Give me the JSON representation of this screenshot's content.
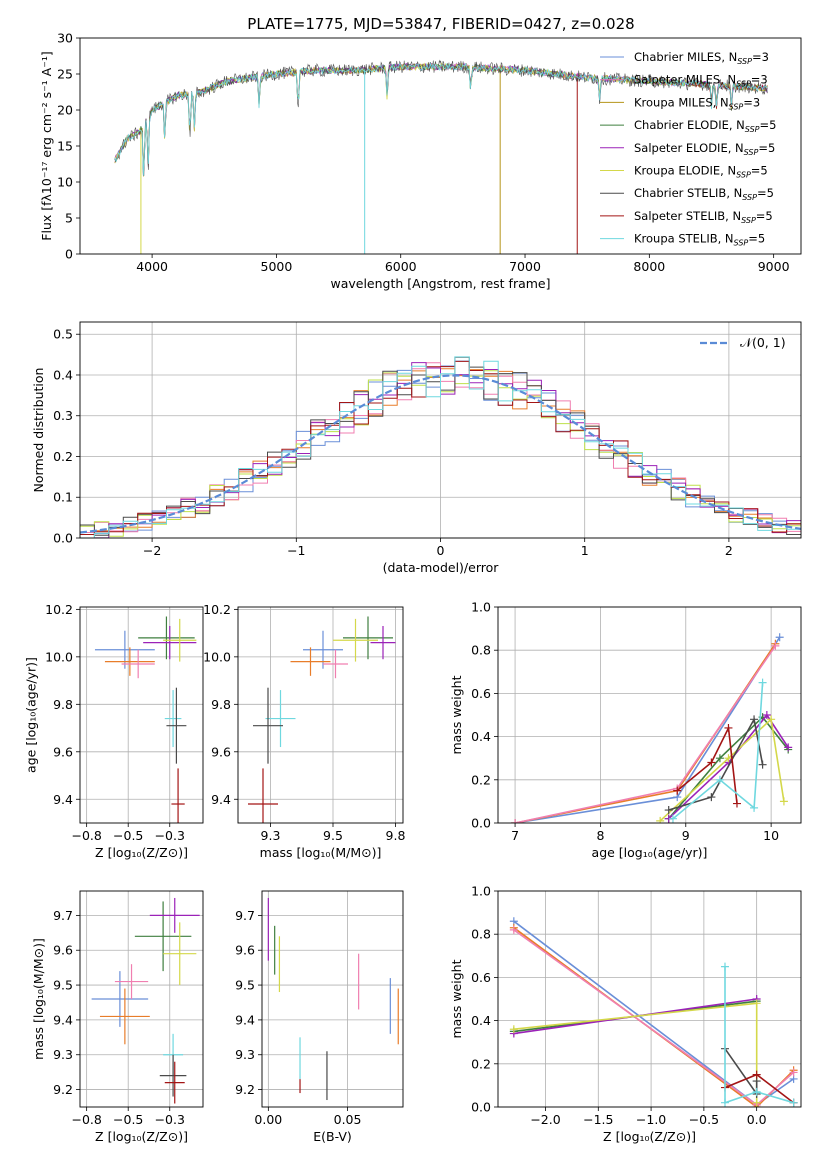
{
  "title": "PLATE=1775, MJD=53847, FIBERID=0427, z=0.028",
  "colors": {
    "Chabrier MILES": "#6a8fd8",
    "Salpeter MILES": "#e070b6",
    "Kroupa MILES": "#b5941a",
    "Chabrier ELODIE": "#3f7f3f",
    "Salpeter ELODIE": "#9b22b8",
    "Kroupa ELODIE": "#d4d84a",
    "Chabrier STELIB": "#4a4a4a",
    "Salpeter STELIB": "#a31515",
    "Kroupa STELIB": "#6fd8df",
    "orange": "#e87d2a",
    "pink": "#f07fb0",
    "lime": "#bfe04a",
    "gauss": "#5a8bd6",
    "grid": "#b0b0b0"
  },
  "chart_data": [
    {
      "id": "spectrum",
      "type": "line",
      "title": "PLATE=1775, MJD=53847, FIBERID=0427, z=0.028",
      "xlabel": "wavelength [Angstrom, rest frame]",
      "ylabel": "Flux [fλ10⁻¹⁷ erg cm⁻² s⁻¹ A⁻¹]",
      "xlim": [
        3420,
        9220
      ],
      "ylim": [
        0,
        30
      ],
      "xticks": [
        4000,
        5000,
        6000,
        7000,
        8000,
        9000
      ],
      "yticks": [
        0,
        5,
        10,
        15,
        20,
        25,
        30
      ],
      "grid": false,
      "legend": "upper right",
      "legend_entries": [
        {
          "name": "Chabrier MILES, N",
          "sub": "SSP",
          "suffix": "=3"
        },
        {
          "name": "Salpeter MILES, N",
          "sub": "SSP",
          "suffix": "=3"
        },
        {
          "name": "Kroupa MILES, N",
          "sub": "SSP",
          "suffix": "=3"
        },
        {
          "name": "Chabrier ELODIE, N",
          "sub": "SSP",
          "suffix": "=5"
        },
        {
          "name": "Salpeter ELODIE, N",
          "sub": "SSP",
          "suffix": "=5"
        },
        {
          "name": "Kroupa ELODIE, N",
          "sub": "SSP",
          "suffix": "=5"
        },
        {
          "name": "Chabrier STELIB, N",
          "sub": "SSP",
          "suffix": "=5"
        },
        {
          "name": "Salpeter STELIB, N",
          "sub": "SSP",
          "suffix": "=5"
        },
        {
          "name": "Kroupa STELIB, N",
          "sub": "SSP",
          "suffix": "=5"
        }
      ],
      "continuum": [
        [
          3700,
          13
        ],
        [
          3800,
          16
        ],
        [
          3900,
          17
        ],
        [
          4000,
          20
        ],
        [
          4100,
          21
        ],
        [
          4200,
          22
        ],
        [
          4400,
          22.5
        ],
        [
          4600,
          24
        ],
        [
          4800,
          24.5
        ],
        [
          5000,
          25
        ],
        [
          5300,
          25.5
        ],
        [
          5600,
          25.5
        ],
        [
          6000,
          26
        ],
        [
          6500,
          26
        ],
        [
          7000,
          25.5
        ],
        [
          7500,
          24.5
        ],
        [
          8000,
          24
        ],
        [
          8500,
          23.5
        ],
        [
          8950,
          23
        ]
      ],
      "dips": [
        [
          3933,
          8
        ],
        [
          3968,
          7
        ],
        [
          4102,
          5
        ],
        [
          4304,
          6
        ],
        [
          4340,
          5
        ],
        [
          4861,
          4
        ],
        [
          5175,
          5
        ],
        [
          5890,
          4
        ],
        [
          6563,
          3
        ],
        [
          7600,
          3
        ],
        [
          8500,
          3
        ],
        [
          8540,
          3
        ],
        [
          8660,
          3
        ]
      ],
      "drops": [
        {
          "series": "Kroupa ELODIE",
          "x": 3910
        },
        {
          "series": "Kroupa MILES",
          "x": 6800
        },
        {
          "series": "Salpeter STELIB",
          "x": 7420
        },
        {
          "series": "Kroupa STELIB",
          "x": 5710
        }
      ]
    },
    {
      "id": "residuals",
      "type": "bar",
      "xlabel": "(data-model)/error",
      "ylabel": "Normed distribution",
      "xlim": [
        -2.5,
        2.5
      ],
      "ylim": [
        0,
        0.53
      ],
      "xticks": [
        -2,
        -1,
        0,
        1,
        2
      ],
      "yticks": [
        0.0,
        0.1,
        0.2,
        0.3,
        0.4,
        0.5
      ],
      "grid": true,
      "legend": "upper right",
      "legend_label": "𝒩(0, 1)",
      "bin_width": 0.1,
      "gauss_mu": 0.1,
      "gauss_sigma": 1.0,
      "series_names": [
        "Chabrier MILES",
        "orange",
        "pink",
        "lime",
        "Salpeter ELODIE",
        "Chabrier STELIB",
        "Salpeter STELIB",
        "Kroupa STELIB"
      ],
      "noise_amp": 0.04
    },
    {
      "id": "age_vs_Z",
      "type": "scatter",
      "xlabel": "Z [log₁₀(Z/Z⊙)]",
      "ylabel": "age  [log₁₀(age/yr)]",
      "xlim": [
        -0.79,
        -0.05
      ],
      "ylim": [
        9.3,
        10.21
      ],
      "xticks": [
        -0.75,
        -0.5,
        -0.25
      ],
      "yticks": [
        9.4,
        9.6,
        9.8,
        10.0,
        10.2
      ],
      "grid": true,
      "points": [
        {
          "series": "Chabrier MILES",
          "x": -0.52,
          "y": 10.03,
          "xerr": 0.18,
          "yerr": 0.08
        },
        {
          "series": "orange",
          "x": -0.49,
          "y": 9.98,
          "xerr": 0.15,
          "yerr": 0.06
        },
        {
          "series": "pink",
          "x": -0.44,
          "y": 9.97,
          "xerr": 0.1,
          "yerr": 0.06
        },
        {
          "series": "Chabrier ELODIE",
          "x": -0.27,
          "y": 10.08,
          "xerr": 0.17,
          "yerr": 0.09
        },
        {
          "series": "Salpeter ELODIE",
          "x": -0.25,
          "y": 10.06,
          "xerr": 0.16,
          "yerr": 0.07
        },
        {
          "series": "Kroupa ELODIE",
          "x": -0.19,
          "y": 10.07,
          "xerr": 0.1,
          "yerr": 0.09
        },
        {
          "series": "Kroupa STELIB",
          "x": -0.23,
          "y": 9.74,
          "xerr": 0.05,
          "yerr": 0.12
        },
        {
          "series": "Chabrier STELIB",
          "x": -0.21,
          "y": 9.71,
          "xerr": 0.06,
          "yerr": 0.16
        },
        {
          "series": "Salpeter STELIB",
          "x": -0.2,
          "y": 9.38,
          "xerr": 0.04,
          "yerr": 0.15
        }
      ]
    },
    {
      "id": "age_vs_mass",
      "type": "scatter",
      "xlabel": "mass [log₁₀(M/M⊙)]",
      "ylabel": "",
      "xlim": [
        9.12,
        9.78
      ],
      "ylim": [
        9.3,
        10.21
      ],
      "xticks": [
        9.25,
        9.5,
        9.75
      ],
      "yticks": [
        9.4,
        9.6,
        9.8,
        10.0,
        10.2
      ],
      "grid": true,
      "points": [
        {
          "series": "Chabrier MILES",
          "x": 9.46,
          "y": 10.03,
          "xerr": 0.08,
          "yerr": 0.08
        },
        {
          "series": "orange",
          "x": 9.41,
          "y": 9.98,
          "xerr": 0.08,
          "yerr": 0.06
        },
        {
          "series": "pink",
          "x": 9.51,
          "y": 9.97,
          "xerr": 0.05,
          "yerr": 0.06
        },
        {
          "series": "Chabrier ELODIE",
          "x": 9.64,
          "y": 10.08,
          "xerr": 0.1,
          "yerr": 0.09
        },
        {
          "series": "Salpeter ELODIE",
          "x": 9.7,
          "y": 10.06,
          "xerr": 0.05,
          "yerr": 0.07
        },
        {
          "series": "Kroupa ELODIE",
          "x": 9.59,
          "y": 10.07,
          "xerr": 0.09,
          "yerr": 0.09
        },
        {
          "series": "Kroupa STELIB",
          "x": 9.29,
          "y": 9.74,
          "xerr": 0.06,
          "yerr": 0.12
        },
        {
          "series": "Chabrier STELIB",
          "x": 9.24,
          "y": 9.71,
          "xerr": 0.06,
          "yerr": 0.16
        },
        {
          "series": "Salpeter STELIB",
          "x": 9.22,
          "y": 9.38,
          "xerr": 0.06,
          "yerr": 0.15
        }
      ]
    },
    {
      "id": "weight_vs_age",
      "type": "line",
      "xlabel": "age  [log₁₀(age/yr)]",
      "ylabel": "mass weight",
      "xlim": [
        6.8,
        10.35
      ],
      "ylim": [
        0,
        1
      ],
      "xticks": [
        7,
        8,
        9,
        10
      ],
      "yticks": [
        0.0,
        0.2,
        0.4,
        0.6,
        0.8,
        1.0
      ],
      "grid": true,
      "series": [
        {
          "name": "Chabrier MILES",
          "points": [
            [
              7.0,
              0.0
            ],
            [
              8.9,
              0.12
            ],
            [
              10.1,
              0.86
            ]
          ]
        },
        {
          "name": "orange",
          "points": [
            [
              7.0,
              0.0
            ],
            [
              8.9,
              0.15
            ],
            [
              10.05,
              0.83
            ]
          ]
        },
        {
          "name": "pink",
          "points": [
            [
              7.0,
              0.0
            ],
            [
              8.9,
              0.16
            ],
            [
              10.05,
              0.82
            ]
          ]
        },
        {
          "name": "Chabrier ELODIE",
          "points": [
            [
              8.8,
              0.02
            ],
            [
              9.4,
              0.3
            ],
            [
              9.9,
              0.49
            ],
            [
              10.2,
              0.34
            ]
          ]
        },
        {
          "name": "Salpeter ELODIE",
          "points": [
            [
              8.8,
              0.02
            ],
            [
              9.5,
              0.28
            ],
            [
              9.95,
              0.5
            ],
            [
              10.2,
              0.35
            ]
          ]
        },
        {
          "name": "Kroupa ELODIE",
          "points": [
            [
              8.7,
              0.01
            ],
            [
              9.5,
              0.3
            ],
            [
              10.0,
              0.48
            ],
            [
              10.15,
              0.1
            ]
          ]
        },
        {
          "name": "Chabrier STELIB",
          "points": [
            [
              8.8,
              0.06
            ],
            [
              9.3,
              0.12
            ],
            [
              9.8,
              0.48
            ],
            [
              9.9,
              0.27
            ]
          ]
        },
        {
          "name": "Salpeter STELIB",
          "points": [
            [
              8.9,
              0.15
            ],
            [
              9.3,
              0.28
            ],
            [
              9.5,
              0.44
            ],
            [
              9.6,
              0.09
            ]
          ]
        },
        {
          "name": "Kroupa STELIB",
          "points": [
            [
              8.85,
              0.02
            ],
            [
              9.4,
              0.2
            ],
            [
              9.8,
              0.07
            ],
            [
              9.9,
              0.65
            ]
          ]
        }
      ]
    },
    {
      "id": "mass_vs_Z",
      "type": "scatter",
      "xlabel": "Z [log₁₀(Z/Z⊙)]",
      "ylabel": "mass [log₁₀(M/M⊙)]",
      "xlim": [
        -0.79,
        -0.05
      ],
      "ylim": [
        9.15,
        9.77
      ],
      "xticks": [
        -0.75,
        -0.5,
        -0.25
      ],
      "yticks": [
        9.2,
        9.3,
        9.4,
        9.5,
        9.6,
        9.7
      ],
      "grid": true,
      "points": [
        {
          "series": "Chabrier MILES",
          "x": -0.55,
          "y": 9.46,
          "xerr": 0.17,
          "yerr": 0.08
        },
        {
          "series": "orange",
          "x": -0.52,
          "y": 9.41,
          "xerr": 0.15,
          "yerr": 0.08
        },
        {
          "series": "pink",
          "x": -0.48,
          "y": 9.51,
          "xerr": 0.1,
          "yerr": 0.05
        },
        {
          "series": "Chabrier ELODIE",
          "x": -0.29,
          "y": 9.64,
          "xerr": 0.17,
          "yerr": 0.1
        },
        {
          "series": "Salpeter ELODIE",
          "x": -0.22,
          "y": 9.7,
          "xerr": 0.15,
          "yerr": 0.05
        },
        {
          "series": "Kroupa ELODIE",
          "x": -0.19,
          "y": 9.59,
          "xerr": 0.1,
          "yerr": 0.09
        },
        {
          "series": "Kroupa STELIB",
          "x": -0.23,
          "y": 9.3,
          "xerr": 0.06,
          "yerr": 0.06
        },
        {
          "series": "Chabrier STELIB",
          "x": -0.23,
          "y": 9.24,
          "xerr": 0.08,
          "yerr": 0.06
        },
        {
          "series": "Salpeter STELIB",
          "x": -0.22,
          "y": 9.22,
          "xerr": 0.06,
          "yerr": 0.06
        }
      ]
    },
    {
      "id": "mass_vs_ebv",
      "type": "scatter",
      "xlabel": "E(B-V)",
      "ylabel": "",
      "xlim": [
        -0.004,
        0.085
      ],
      "ylim": [
        9.15,
        9.77
      ],
      "xticks": [
        0.0,
        0.05
      ],
      "yticks": [
        9.2,
        9.3,
        9.4,
        9.5,
        9.6,
        9.7
      ],
      "grid": true,
      "points": [
        {
          "series": "Salpeter ELODIE",
          "x": 0.0,
          "y": 9.66,
          "xerr": 0,
          "yerr": 0.09
        },
        {
          "series": "Chabrier ELODIE",
          "x": 0.004,
          "y": 9.6,
          "xerr": 0,
          "yerr": 0.07
        },
        {
          "series": "Kroupa ELODIE",
          "x": 0.007,
          "y": 9.56,
          "xerr": 0,
          "yerr": 0.08
        },
        {
          "series": "pink",
          "x": 0.057,
          "y": 9.51,
          "xerr": 0,
          "yerr": 0.08
        },
        {
          "series": "Chabrier MILES",
          "x": 0.077,
          "y": 9.44,
          "xerr": 0,
          "yerr": 0.08
        },
        {
          "series": "orange",
          "x": 0.082,
          "y": 9.41,
          "xerr": 0,
          "yerr": 0.08
        },
        {
          "series": "Kroupa STELIB",
          "x": 0.02,
          "y": 9.29,
          "xerr": 0,
          "yerr": 0.06
        },
        {
          "series": "Chabrier STELIB",
          "x": 0.037,
          "y": 9.24,
          "xerr": 0,
          "yerr": 0.07
        },
        {
          "series": "Salpeter STELIB",
          "x": 0.02,
          "y": 9.21,
          "xerr": 0,
          "yerr": 0.02
        }
      ]
    },
    {
      "id": "weight_vs_Z",
      "type": "line",
      "xlabel": "Z [log₁₀(Z/Z⊙)]",
      "ylabel": "mass weight",
      "xlim": [
        -2.45,
        0.42
      ],
      "ylim": [
        0,
        1
      ],
      "xticks": [
        -2.0,
        -1.5,
        -1.0,
        -0.5,
        0.0
      ],
      "yticks": [
        0.0,
        0.2,
        0.4,
        0.6,
        0.8,
        1.0
      ],
      "grid": true,
      "series": [
        {
          "name": "Chabrier MILES",
          "points": [
            [
              -2.3,
              0.86
            ],
            [
              0.0,
              0.01
            ],
            [
              0.35,
              0.13
            ]
          ]
        },
        {
          "name": "orange",
          "points": [
            [
              -2.3,
              0.83
            ],
            [
              0.0,
              0.0
            ],
            [
              0.35,
              0.17
            ]
          ]
        },
        {
          "name": "pink",
          "points": [
            [
              -2.3,
              0.82
            ],
            [
              0.0,
              0.01
            ],
            [
              0.35,
              0.16
            ]
          ]
        },
        {
          "name": "Chabrier ELODIE",
          "points": [
            [
              -2.3,
              0.35
            ],
            [
              0.0,
              0.49
            ]
          ]
        },
        {
          "name": "Salpeter ELODIE",
          "points": [
            [
              -2.3,
              0.34
            ],
            [
              0.0,
              0.5
            ]
          ]
        },
        {
          "name": "Kroupa ELODIE",
          "points": [
            [
              -2.3,
              0.36
            ],
            [
              0.0,
              0.48
            ],
            [
              0.0,
              0.02
            ]
          ]
        },
        {
          "name": "Chabrier STELIB",
          "points": [
            [
              -0.3,
              0.27
            ],
            [
              0.0,
              0.06
            ],
            [
              0.0,
              0.12
            ]
          ]
        },
        {
          "name": "Salpeter STELIB",
          "points": [
            [
              -0.3,
              0.09
            ],
            [
              0.0,
              0.15
            ],
            [
              0.35,
              0.02
            ]
          ]
        },
        {
          "name": "Kroupa STELIB",
          "points": [
            [
              -0.3,
              0.65
            ],
            [
              -0.3,
              0.02
            ],
            [
              0.0,
              0.07
            ],
            [
              0.35,
              0.02
            ]
          ]
        }
      ]
    }
  ]
}
